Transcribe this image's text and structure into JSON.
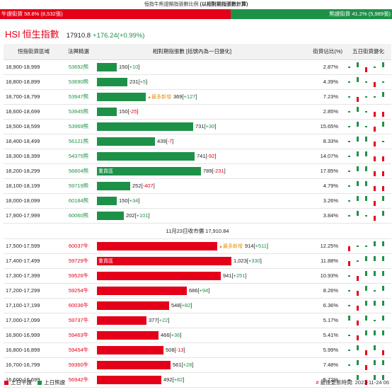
{
  "page": {
    "title_prefix": "恒指牛熊證期指張數比例 ",
    "title_bold": "(以相對期指張數計算)"
  },
  "ratio": {
    "bull_label": "牛證街貨 58.8% (8,532張)",
    "bull_pct": 58.8,
    "bear_label": "熊證街貨 41.2% (5,989張)",
    "bull_color": "#e50019",
    "bear_color": "#1e9148"
  },
  "index": {
    "code": "HSI",
    "name": "恒生指數",
    "price": "17910.8",
    "change": "+176.24(+0.99%)"
  },
  "table": {
    "headers": {
      "range": "恒指街貨區域",
      "nominal": "法興精選",
      "bar": "相對期指張數 [括號內為一日變化]",
      "pct": "街貨佔比(%)",
      "spark": "五日街貨變化"
    },
    "divider": "11月23日收市價 17,910.84",
    "bar_scale_max": 1023,
    "bear_rows": [
      {
        "range": "18,900-18,999",
        "nominal": "53692熊",
        "count": 150,
        "count_text": "150",
        "delta": "+10",
        "badge": "",
        "pct": "2.87%",
        "spark": [
          0,
          1,
          -1,
          0,
          1
        ]
      },
      {
        "range": "18,800-18,899",
        "nominal": "53690熊",
        "count": 231,
        "count_text": "231",
        "delta": "+5",
        "badge": "",
        "pct": "4.39%",
        "spark": [
          0,
          1,
          0,
          -1,
          0
        ]
      },
      {
        "range": "18,700-18,799",
        "nominal": "53947熊",
        "count": 369,
        "count_text": "369",
        "delta": "+127",
        "badge": "最多新增",
        "pct": "7.23%",
        "spark": [
          0,
          -1,
          0,
          0,
          1
        ]
      },
      {
        "range": "18,600-18,699",
        "nominal": "53945熊",
        "count": 150,
        "count_text": "150",
        "delta": "-25",
        "badge": "",
        "pct": "2.85%",
        "spark": [
          0,
          1,
          0,
          -1,
          -1
        ]
      },
      {
        "range": "18,500-18,599",
        "nominal": "53969熊",
        "count": 731,
        "count_text": "731",
        "delta": "+30",
        "badge": "",
        "pct": "15.65%",
        "spark": [
          0,
          1,
          0,
          -1,
          1
        ]
      },
      {
        "range": "18,400-18,499",
        "nominal": "56121熊",
        "count": 439,
        "count_text": "439",
        "delta": "-7",
        "badge": "",
        "pct": "8.33%",
        "spark": [
          0,
          1,
          1,
          -1,
          0
        ]
      },
      {
        "range": "18,300-18,399",
        "nominal": "54375熊",
        "count": 741,
        "count_text": "741",
        "delta": "-92",
        "badge": "",
        "pct": "14.07%",
        "spark": [
          0,
          1,
          1,
          -1,
          -1
        ]
      },
      {
        "range": "18,200-18,299",
        "nominal": "56804熊",
        "count": 789,
        "count_text": "789",
        "delta": "-231",
        "badge": "",
        "tag": "重貨區",
        "pct": "17.85%",
        "spark": [
          0,
          1,
          1,
          -1,
          -1
        ]
      },
      {
        "range": "18,100-18,199",
        "nominal": "59719熊",
        "count": 252,
        "count_text": "252",
        "delta": "-407",
        "badge": "",
        "pct": "4.79%",
        "spark": [
          0,
          1,
          1,
          -1,
          -1
        ]
      },
      {
        "range": "18,000-18,099",
        "nominal": "60184熊",
        "count": 150,
        "count_text": "150",
        "delta": "+34",
        "badge": "",
        "pct": "3.26%",
        "spark": [
          0,
          1,
          1,
          -1,
          1
        ]
      },
      {
        "range": "17,900-17,999",
        "nominal": "60060熊",
        "count": 202,
        "count_text": "202",
        "delta": "+101",
        "badge": "",
        "pct": "3.84%",
        "spark": [
          0,
          1,
          0,
          -1,
          1
        ]
      }
    ],
    "bull_rows": [
      {
        "range": "17,500-17,599",
        "nominal": "60037牛",
        "count": 914,
        "count_text": "914",
        "delta": "+511",
        "badge": "最多新增",
        "pct": "12.25%",
        "spark": [
          -1,
          0,
          0,
          1,
          1
        ]
      },
      {
        "range": "17,400-17,499",
        "nominal": "59729牛",
        "count": 1023,
        "count_text": "1,023",
        "delta": "+330",
        "badge": "",
        "tag": "重貨區",
        "pct": "11.88%",
        "spark": [
          -1,
          0,
          1,
          1,
          1
        ]
      },
      {
        "range": "17,300-17,399",
        "nominal": "59526牛",
        "count": 941,
        "count_text": "941",
        "delta": "+251",
        "badge": "",
        "pct": "10.93%",
        "spark": [
          0,
          -1,
          1,
          1,
          1
        ]
      },
      {
        "range": "17,200-17,299",
        "nominal": "59254牛",
        "count": 686,
        "count_text": "686",
        "delta": "+94",
        "badge": "",
        "pct": "8.26%",
        "spark": [
          0,
          -1,
          1,
          0,
          1
        ]
      },
      {
        "range": "17,100-17,199",
        "nominal": "60036牛",
        "count": 548,
        "count_text": "548",
        "delta": "+82",
        "badge": "",
        "pct": "6.36%",
        "spark": [
          0,
          -1,
          1,
          1,
          1
        ]
      },
      {
        "range": "17,000-17,099",
        "nominal": "59737牛",
        "count": 377,
        "count_text": "377",
        "delta": "+22",
        "badge": "",
        "pct": "5.17%",
        "spark": [
          1,
          -1,
          1,
          0,
          1
        ]
      },
      {
        "range": "16,900-16,999",
        "nominal": "59463牛",
        "count": 466,
        "count_text": "466",
        "delta": "+36",
        "badge": "",
        "pct": "5.41%",
        "spark": [
          0,
          -1,
          1,
          1,
          1
        ]
      },
      {
        "range": "16,800-16,899",
        "nominal": "59454牛",
        "count": 508,
        "count_text": "508",
        "delta": "-13",
        "badge": "",
        "pct": "5.99%",
        "spark": [
          0,
          1,
          -1,
          1,
          -1
        ]
      },
      {
        "range": "16,700-16,799",
        "nominal": "59360牛",
        "count": 561,
        "count_text": "561",
        "delta": "+28",
        "badge": "",
        "pct": "7.48%",
        "spark": [
          0,
          1,
          -1,
          1,
          1
        ]
      },
      {
        "range": "16,600-16,699",
        "nominal": "56942牛",
        "count": 492,
        "count_text": "492",
        "delta": "+82",
        "badge": "",
        "pct": "5.72%",
        "spark": [
          0,
          1,
          -1,
          1,
          1
        ]
      }
    ]
  },
  "legend": {
    "bull": "上日牛證",
    "bear": "上日熊證",
    "hash": "#",
    "update": "最後更新時間: 2023-11-24 06"
  }
}
